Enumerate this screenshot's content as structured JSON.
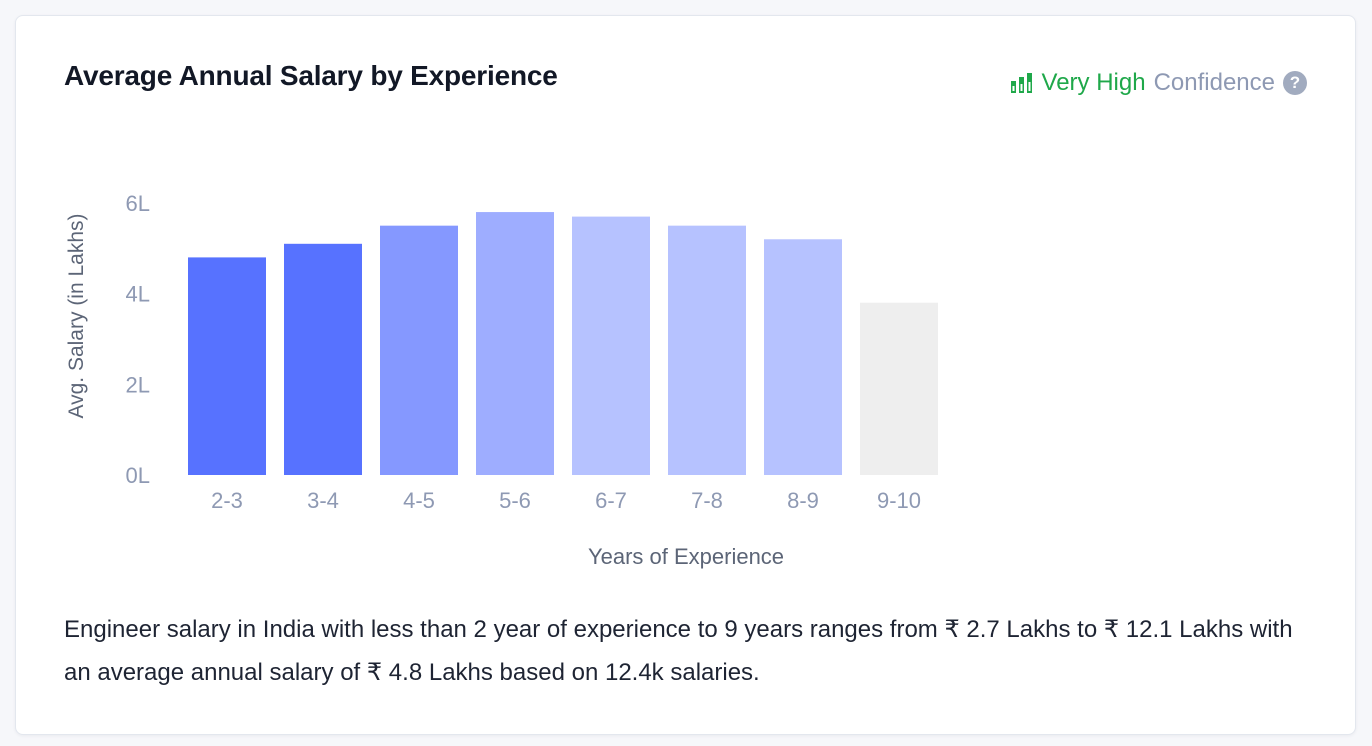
{
  "card": {
    "title": "Average Annual Salary by Experience",
    "confidence": {
      "level": "Very High",
      "label": "Confidence",
      "help": "?",
      "icon": "bar-chart-signal-icon"
    },
    "summary": "Engineer salary in India with less than 2 year of experience to 9 years ranges from ₹ 2.7 Lakhs to ₹ 12.1 Lakhs with an average annual salary of ₹ 4.8 Lakhs based on 12.4k salaries."
  },
  "chart_data": {
    "type": "bar",
    "title": "",
    "xlabel": "Years of Experience",
    "ylabel": "Avg. Salary (in Lakhs)",
    "ylim": [
      0,
      6
    ],
    "yticks": [
      0,
      2,
      4,
      6
    ],
    "ytick_labels": [
      "0L",
      "2L",
      "4L",
      "6L"
    ],
    "categories": [
      "2-3",
      "3-4",
      "4-5",
      "5-6",
      "6-7",
      "7-8",
      "8-9",
      "9-10"
    ],
    "values": [
      4.8,
      5.1,
      5.5,
      5.8,
      5.7,
      5.5,
      5.2,
      3.8
    ],
    "bar_colors": [
      "#5772ff",
      "#5772ff",
      "#8598ff",
      "#9eadff",
      "#b6c2ff",
      "#b6c2ff",
      "#b6c2ff",
      "#eeeeee"
    ],
    "grid": false,
    "legend": "none",
    "colors": {
      "axis_text": "#8e99b3",
      "label_text": "#5c6577"
    }
  }
}
